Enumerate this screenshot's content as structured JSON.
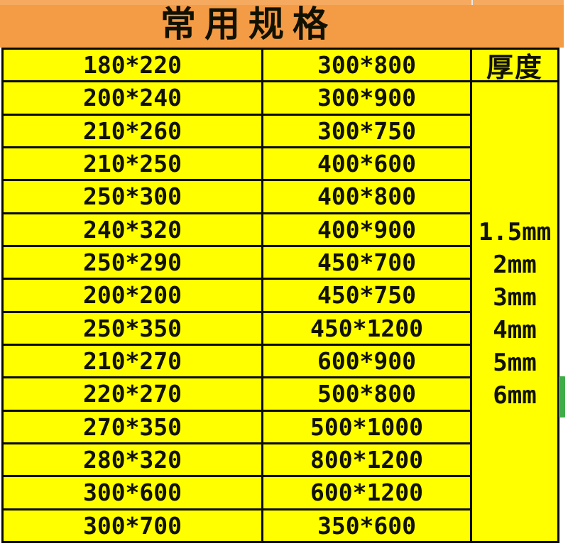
{
  "page": {
    "title": "常用规格"
  },
  "specs_table": {
    "thickness_header": "厚度",
    "rows": [
      {
        "col1": "180*220",
        "col2": "300*800"
      },
      {
        "col1": "200*240",
        "col2": "300*900"
      },
      {
        "col1": "210*260",
        "col2": "300*750"
      },
      {
        "col1": "210*250",
        "col2": "400*600"
      },
      {
        "col1": "250*300",
        "col2": "400*800"
      },
      {
        "col1": "240*320",
        "col2": "400*900"
      },
      {
        "col1": "250*290",
        "col2": "450*700"
      },
      {
        "col1": "200*200",
        "col2": "450*750"
      },
      {
        "col1": "250*350",
        "col2": "450*1200"
      },
      {
        "col1": "210*270",
        "col2": "600*900"
      },
      {
        "col1": "220*270",
        "col2": "500*800"
      },
      {
        "col1": "270*350",
        "col2": "500*1000"
      },
      {
        "col1": "280*320",
        "col2": "800*1200"
      },
      {
        "col1": "300*600",
        "col2": "600*1200"
      },
      {
        "col1": "300*700",
        "col2": "350*600"
      }
    ],
    "thickness_values": [
      "1.5mm",
      "2mm",
      "3mm",
      "4mm",
      "5mm",
      "6mm"
    ]
  },
  "colors": {
    "orange": "#F49B45",
    "orange_light": "#F6AA60",
    "yellow": "#FFFF00",
    "border": "#0A0A00",
    "green_marker": "#3FAE49"
  }
}
